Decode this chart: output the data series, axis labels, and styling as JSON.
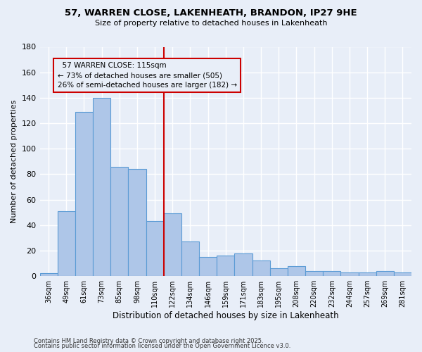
{
  "title": "57, WARREN CLOSE, LAKENHEATH, BRANDON, IP27 9HE",
  "subtitle": "Size of property relative to detached houses in Lakenheath",
  "xlabel": "Distribution of detached houses by size in Lakenheath",
  "ylabel": "Number of detached properties",
  "categories": [
    "36sqm",
    "49sqm",
    "61sqm",
    "73sqm",
    "85sqm",
    "98sqm",
    "110sqm",
    "122sqm",
    "134sqm",
    "146sqm",
    "159sqm",
    "171sqm",
    "183sqm",
    "195sqm",
    "208sqm",
    "220sqm",
    "232sqm",
    "244sqm",
    "257sqm",
    "269sqm",
    "281sqm"
  ],
  "values": [
    2,
    51,
    129,
    140,
    86,
    84,
    43,
    49,
    27,
    15,
    16,
    18,
    12,
    6,
    8,
    4,
    4,
    3,
    3,
    4,
    3
  ],
  "bar_color": "#aec6e8",
  "bar_edge_color": "#5b9bd5",
  "background_color": "#e8eef8",
  "grid_color": "#ffffff",
  "property_label": "57 WARREN CLOSE: 115sqm",
  "pct_smaller": 73,
  "n_smaller": 505,
  "pct_larger_semi": 26,
  "n_larger_semi": 182,
  "vline_color": "#cc0000",
  "ylim": [
    0,
    180
  ],
  "yticks": [
    0,
    20,
    40,
    60,
    80,
    100,
    120,
    140,
    160,
    180
  ],
  "vline_x_index": 6.5,
  "footnote1": "Contains HM Land Registry data © Crown copyright and database right 2025.",
  "footnote2": "Contains public sector information licensed under the Open Government Licence v3.0."
}
